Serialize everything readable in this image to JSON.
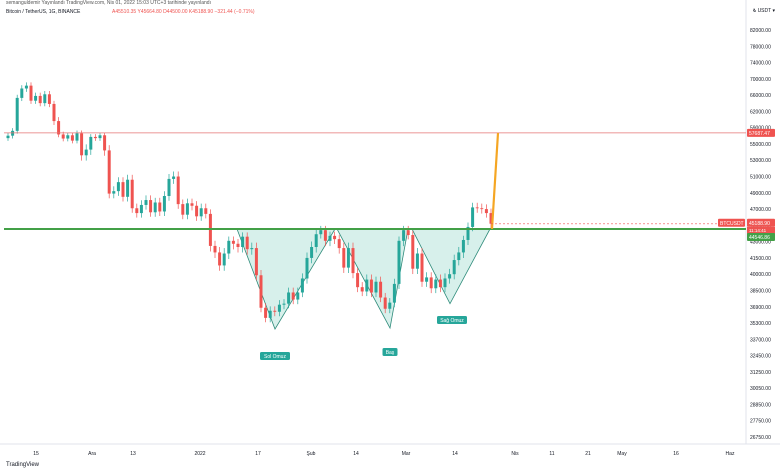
{
  "header": {
    "top_line": "semanguldemir Yayınlandı TradingView.com, Nis 01, 2022 15:03 UTC+3 tarihinde yayınlandı",
    "symbol_line": "Bitcoin / TetherUS, 1G, BINANCE",
    "ohlc": "A45510.35 Y45664.80 D44500.00 K45188.90 −321.44 (−0.71%)"
  },
  "price_scale": {
    "currency": "₺ USDT ▾",
    "ticks": [
      "82000.00",
      "78000.00",
      "74000.00",
      "70000.00",
      "66000.00",
      "62000.00",
      "59000.00",
      "55000.00",
      "53000.00",
      "51000.00",
      "49000.00",
      "47000.00",
      "45000.00",
      "43000.00",
      "41500.00",
      "40000.00",
      "38500.00",
      "36900.00",
      "35300.00",
      "33700.00",
      "32450.00",
      "31250.00",
      "30050.00",
      "28850.00",
      "27750.00",
      "26750.00"
    ]
  },
  "time_scale": {
    "ticks": [
      "15",
      "Ara",
      "13",
      "2022",
      "17",
      "Şub",
      "14",
      "Mar",
      "14",
      "Nis",
      "11",
      "21",
      "May",
      "16",
      "Haz"
    ]
  },
  "footer": {
    "logo": "TradingView"
  },
  "colors": {
    "bull": "#26a69a",
    "bear": "#ef5350",
    "target_line": "#e57373",
    "neckline": "#43a047",
    "projection": "#f5a623",
    "pattern_fill": "#b7e4da",
    "pattern_stroke": "#2e8b7a"
  },
  "chart_data": {
    "type": "candlestick",
    "title": "Bitcoin / TetherUS, 1G, BINANCE",
    "open": 45510.35,
    "high": 45664.8,
    "low": 44500.0,
    "close": 45188.9,
    "change": -321.44,
    "change_pct": -0.71,
    "candles_approx": [
      57000,
      58200,
      65300,
      67600,
      68300,
      64600,
      65800,
      64000,
      66200,
      63800,
      60200,
      57300,
      56300,
      57100,
      55800,
      57600,
      53600,
      54300,
      56700,
      56400,
      57100,
      54200,
      48900,
      49200,
      50300,
      48500,
      50600,
      47100,
      46500,
      47500,
      48100,
      46600,
      47800,
      46700,
      48600,
      50700,
      51000,
      47600,
      46300,
      47700,
      47400,
      46100,
      47100,
      46400,
      42600,
      42000,
      40800,
      41900,
      43100,
      42800,
      42500,
      43600,
      42300,
      42400,
      39900,
      36800,
      35800,
      36500,
      36400,
      37100,
      37200,
      38300,
      37600,
      38300,
      39600,
      41500,
      42500,
      43900,
      44400,
      43100,
      43700,
      43300,
      42400,
      40600,
      42400,
      40100,
      38800,
      38400,
      39500,
      38300,
      39300,
      37800,
      36700,
      37300,
      39100,
      43100,
      44400,
      43800,
      40500,
      41900,
      39300,
      39700,
      38700,
      39500,
      38800,
      39600,
      40000,
      41300,
      42000,
      43200,
      44800,
      47200,
      47100,
      47000,
      46500,
      45200
    ],
    "levels": [
      {
        "label": "57687.47",
        "value": 57687.47
      },
      {
        "label": "45188.90",
        "value": 45188.9
      },
      {
        "label": "44546.86",
        "value": 44546.86
      }
    ],
    "countdown": "11:14:41",
    "annotations": [
      "Sol Omuz",
      "Baş",
      "Sağ Omuz"
    ],
    "symbol_badge": "BTCUSDT",
    "price_labels": [
      "Sol Omuz",
      "Baş",
      "Sağ Omuz"
    ],
    "pattern": "inverse head and shoulders"
  }
}
